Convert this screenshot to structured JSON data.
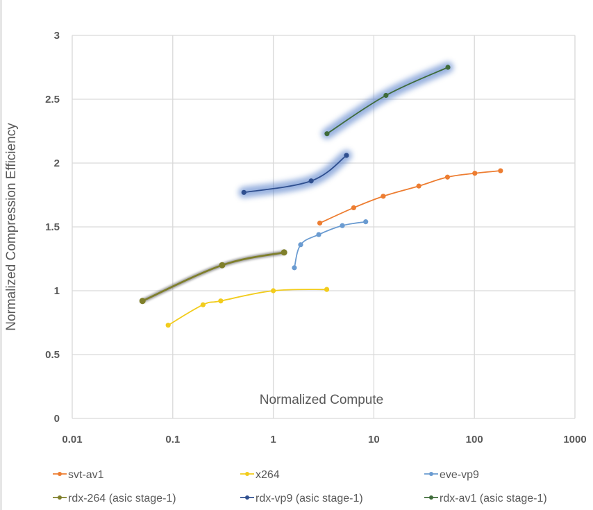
{
  "chart_data": {
    "type": "line",
    "title": "",
    "xlabel": "Normalized Compute",
    "ylabel": "Normalized Compression Efficiency",
    "x_scale": "log",
    "xlim": [
      0.01,
      1000
    ],
    "ylim": [
      0,
      3
    ],
    "x_ticks": [
      "0.01",
      "0.1",
      "1",
      "10",
      "100",
      "1000"
    ],
    "x_tick_values": [
      0.01,
      0.1,
      1,
      10,
      100,
      1000
    ],
    "y_ticks": [
      "0",
      "0.5",
      "1",
      "1.5",
      "2",
      "2.5",
      "3"
    ],
    "y_tick_values": [
      0,
      0.5,
      1,
      1.5,
      2,
      2.5,
      3
    ],
    "grid": true,
    "legend_position": "bottom",
    "series": [
      {
        "name": "svt-av1",
        "color": "#ED7D31",
        "highlight": false,
        "x": [
          2.9,
          6.3,
          12.4,
          28,
          54,
          101,
          182
        ],
        "y": [
          1.53,
          1.65,
          1.74,
          1.82,
          1.89,
          1.92,
          1.94
        ]
      },
      {
        "name": "x264",
        "color": "#F2CC1C",
        "highlight": false,
        "x": [
          0.09,
          0.2,
          0.3,
          1.0,
          3.4
        ],
        "y": [
          0.73,
          0.89,
          0.92,
          1.0,
          1.01
        ]
      },
      {
        "name": "eve-vp9",
        "color": "#6A9BD1",
        "highlight": false,
        "x": [
          1.62,
          1.87,
          2.83,
          4.86,
          8.3
        ],
        "y": [
          1.18,
          1.36,
          1.44,
          1.51,
          1.54
        ]
      },
      {
        "name": "rdx-264 (asic stage-1)",
        "color": "#7F7F2A",
        "highlight": false,
        "x": [
          0.05,
          0.31,
          1.28
        ],
        "y": [
          0.92,
          1.2,
          1.3
        ]
      },
      {
        "name": "rdx-vp9 (asic stage-1)",
        "color": "#2F4F8F",
        "highlight": true,
        "x": [
          0.51,
          2.38,
          5.34
        ],
        "y": [
          1.77,
          1.86,
          2.06
        ]
      },
      {
        "name": "rdx-av1 (asic stage-1)",
        "color": "#3F6B3A",
        "highlight": true,
        "x": [
          3.42,
          13.2,
          54.5
        ],
        "y": [
          2.23,
          2.53,
          2.75
        ]
      }
    ]
  },
  "colors": {
    "grid": "#D9D9D9",
    "text": "#595959",
    "glow": "#4472C4",
    "rdx264_glow": "#555555"
  }
}
